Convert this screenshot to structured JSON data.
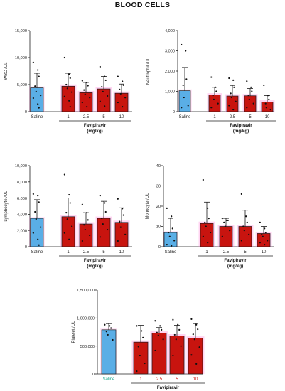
{
  "figure": {
    "title": "BLOOD CELLS"
  },
  "colors": {
    "saline_fill": "#5aaee6",
    "saline_label": "#19a88c",
    "favi_fill": "#c8140f",
    "favi_label_platelet": "#c8140f",
    "pink_glow": "#ff7ad6",
    "axis": "#222222",
    "dot": "#111111"
  },
  "chart_data": [
    {
      "type": "bar",
      "id": "wbc",
      "ylabel": "WBC /UL",
      "ylim": [
        0,
        15000
      ],
      "yticks": [
        0,
        5000,
        10000,
        15000
      ],
      "ytick_labels": [
        "0",
        "5,000",
        "10,000",
        "15,000"
      ],
      "categories": [
        "Saline",
        "1",
        "2.5",
        "5",
        "10"
      ],
      "group_label": "Favipiravir",
      "group_unit": "(mg/kg)",
      "values": [
        4400,
        4700,
        3500,
        4200,
        3400
      ],
      "errors": [
        2700,
        2400,
        1900,
        2300,
        1700
      ],
      "points": [
        [
          9100,
          7700,
          6500,
          4700,
          3700,
          3000,
          2500,
          1400,
          700
        ],
        [
          10000,
          6900,
          6200,
          5000,
          4300,
          3600,
          2800,
          2000,
          900
        ],
        [
          5700,
          5400,
          4800,
          4000,
          3200,
          2600,
          1700,
          900
        ],
        [
          8300,
          6500,
          5800,
          4600,
          3700,
          2900,
          1900,
          1000
        ],
        [
          6500,
          5600,
          4900,
          4100,
          3300,
          2600,
          1700,
          900
        ]
      ]
    },
    {
      "type": "bar",
      "id": "neutrophil",
      "ylabel": "Neutrophil /UL",
      "ylim": [
        0,
        4000
      ],
      "yticks": [
        0,
        1000,
        2000,
        3000,
        4000
      ],
      "ytick_labels": [
        "0",
        "1,000",
        "2,000",
        "3,000",
        "4,000"
      ],
      "categories": [
        "Saline",
        "1",
        "2.5",
        "5",
        "10"
      ],
      "group_label": "Favipiravir",
      "group_unit": "(mg/kg)",
      "values": [
        1030,
        820,
        770,
        780,
        470
      ],
      "errors": [
        1150,
        380,
        520,
        360,
        320
      ],
      "points": [
        [
          3300,
          3000,
          1600,
          1300,
          700,
          300,
          200
        ],
        [
          1700,
          1200,
          1000,
          800,
          600,
          400,
          200
        ],
        [
          1650,
          1550,
          1200,
          900,
          700,
          500,
          300,
          100
        ],
        [
          1500,
          1200,
          1000,
          800,
          600,
          400,
          200
        ],
        [
          1300,
          800,
          600,
          400,
          200,
          100
        ]
      ]
    },
    {
      "type": "bar",
      "id": "lymphocyte",
      "ylabel": "Lymphocyte /UL",
      "ylim": [
        0,
        10000
      ],
      "yticks": [
        0,
        2000,
        4000,
        6000,
        8000,
        10000
      ],
      "ytick_labels": [
        "0",
        "2,000",
        "4,000",
        "6,000",
        "8,000",
        "10,000"
      ],
      "categories": [
        "Saline",
        "1",
        "2.5",
        "5",
        "10"
      ],
      "group_label": "Favipiravir",
      "group_unit": "(mg/kg)",
      "values": [
        3500,
        3700,
        2800,
        3500,
        3000
      ],
      "errors": [
        2300,
        2300,
        1400,
        2100,
        1800
      ],
      "points": [
        [
          6500,
          6300,
          5500,
          4300,
          3400,
          2400,
          1700,
          900,
          200
        ],
        [
          8900,
          6400,
          5400,
          4200,
          3400,
          2500,
          1700,
          900
        ],
        [
          5200,
          4200,
          3300,
          2700,
          2100,
          1400,
          700
        ],
        [
          6300,
          5400,
          4300,
          3500,
          2800,
          2100,
          1200
        ],
        [
          5900,
          4700,
          3900,
          3100,
          2400,
          1500,
          700
        ]
      ]
    },
    {
      "type": "bar",
      "id": "monocyte",
      "ylabel": "Monocyte /UL",
      "ylim": [
        0,
        40
      ],
      "yticks": [
        0,
        10,
        20,
        30,
        40
      ],
      "ytick_labels": [
        "0",
        "10",
        "20",
        "30",
        "40"
      ],
      "categories": [
        "Saline",
        "1",
        "2.5",
        "5",
        "10"
      ],
      "group_label": "Favipiravir",
      "group_unit": "(mg/kg)",
      "values": [
        7,
        11.5,
        10,
        10,
        6.5
      ],
      "errors": [
        7,
        10.5,
        4,
        8,
        3.5
      ],
      "points": [
        [
          19,
          15,
          9,
          7,
          5,
          3,
          1,
          0.5
        ],
        [
          33,
          19,
          14,
          12,
          10,
          7,
          5,
          2
        ],
        [
          14,
          13,
          13,
          12,
          10,
          8,
          5
        ],
        [
          26,
          15,
          12,
          10,
          8,
          6,
          3
        ],
        [
          12,
          9,
          7,
          6,
          5,
          3,
          2,
          1
        ]
      ]
    },
    {
      "type": "bar",
      "id": "platelet",
      "ylabel": "Platelet /UL",
      "ylim": [
        0,
        1500000
      ],
      "yticks": [
        0,
        500000,
        1000000,
        1500000
      ],
      "ytick_labels": [
        "0",
        "500,000",
        "1,000,000",
        "1,500,000"
      ],
      "categories": [
        "Saline",
        "1",
        "2.5",
        "5",
        "10"
      ],
      "group_label": "Favipiravir",
      "group_unit": "(mg/kg)",
      "values": [
        790000,
        570000,
        730000,
        680000,
        640000
      ],
      "errors": [
        110000,
        300000,
        100000,
        190000,
        260000
      ],
      "points": [
        [
          880000,
          860000,
          820000,
          760000,
          700000,
          610000
        ],
        [
          860000,
          770000,
          650000,
          490000,
          330000,
          190000,
          50000
        ],
        [
          950000,
          860000,
          790000,
          740000,
          690000,
          620000,
          420000
        ],
        [
          970000,
          880000,
          790000,
          700000,
          620000,
          500000,
          330000
        ],
        [
          980000,
          880000,
          800000,
          710000,
          620000,
          480000,
          340000,
          180000
        ]
      ]
    }
  ]
}
